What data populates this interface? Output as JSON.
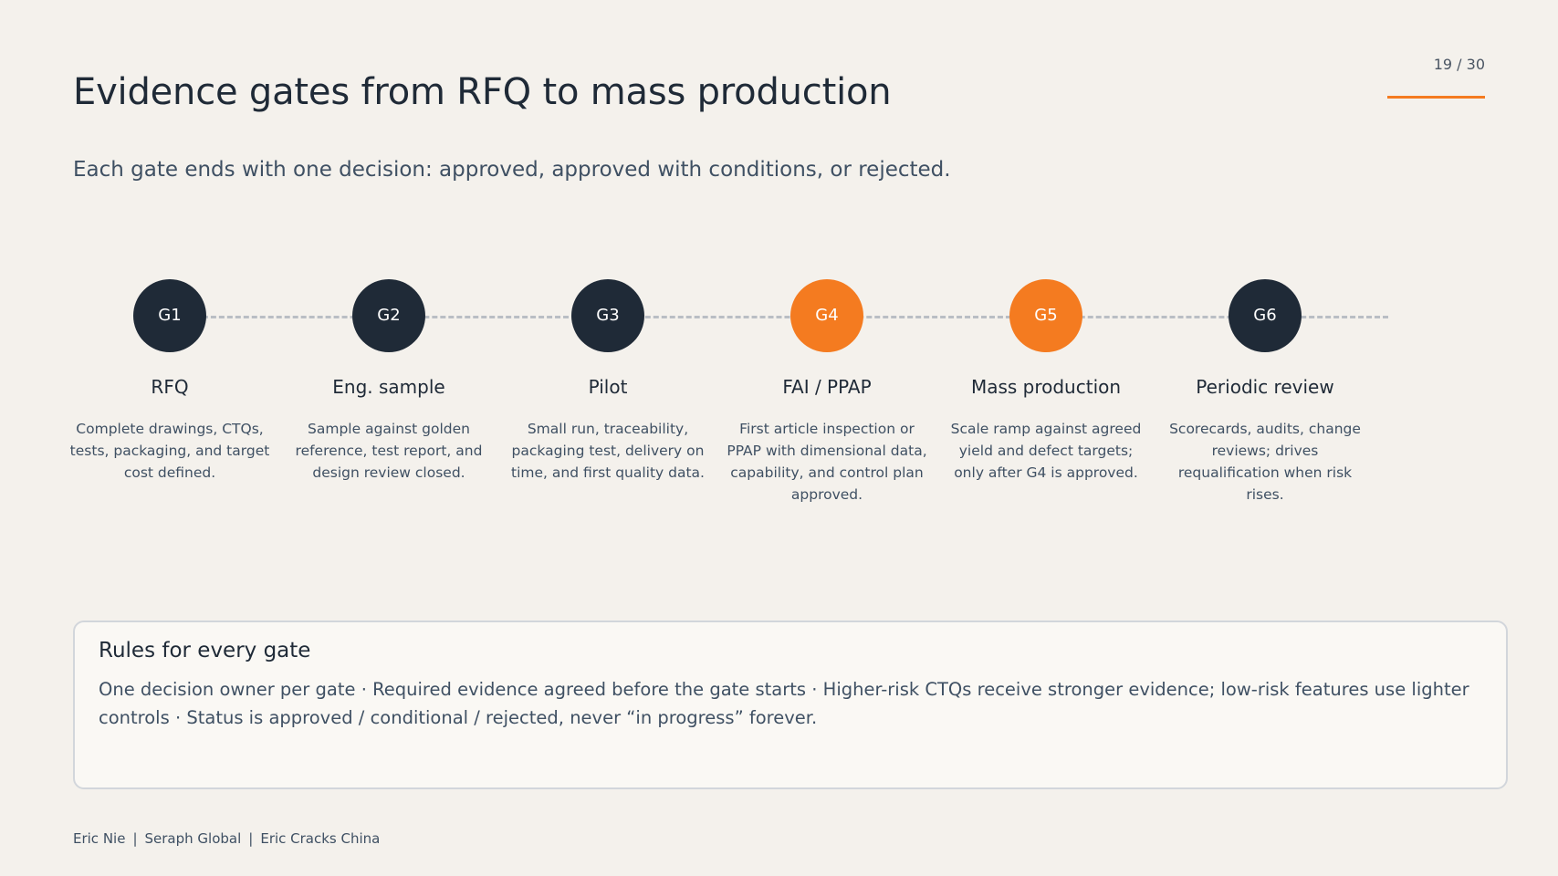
{
  "page_number": "19 / 30",
  "title": "Evidence gates from RFQ to mass production",
  "subtitle": "Each gate ends with one decision: approved, approved with conditions, or rejected.",
  "colors": {
    "background": "#f4f1ec",
    "dark": "#1f2a37",
    "accent": "#f47b20",
    "muted_text": "#3f5063"
  },
  "gates": [
    {
      "id": "G1",
      "name": "RFQ",
      "description": "Complete drawings, CTQs, tests, packaging, and target cost defined.",
      "highlight": false
    },
    {
      "id": "G2",
      "name": "Eng. sample",
      "description": "Sample against golden reference, test report, and design review closed.",
      "highlight": false
    },
    {
      "id": "G3",
      "name": "Pilot",
      "description": "Small run, traceability, packaging test, delivery on time, and first quality data.",
      "highlight": false
    },
    {
      "id": "G4",
      "name": "FAI / PPAP",
      "description": "First article inspection or PPAP with dimensional data, capability, and control plan approved.",
      "highlight": true
    },
    {
      "id": "G5",
      "name": "Mass production",
      "description": "Scale ramp against agreed yield and defect targets; only after G4 is approved.",
      "highlight": true
    },
    {
      "id": "G6",
      "name": "Periodic review",
      "description": "Scorecards, audits, change reviews; drives requalification when risk rises.",
      "highlight": false
    }
  ],
  "rules": {
    "title": "Rules for every gate",
    "text": "One decision owner per gate · Required evidence agreed before the gate starts · Higher-risk CTQs receive stronger evidence; low-risk features use lighter controls · Status is approved / conditional / rejected, never “in progress” forever."
  },
  "footer": {
    "author": "Eric Nie",
    "company": "Seraph Global",
    "brand": "Eric Cracks China"
  }
}
